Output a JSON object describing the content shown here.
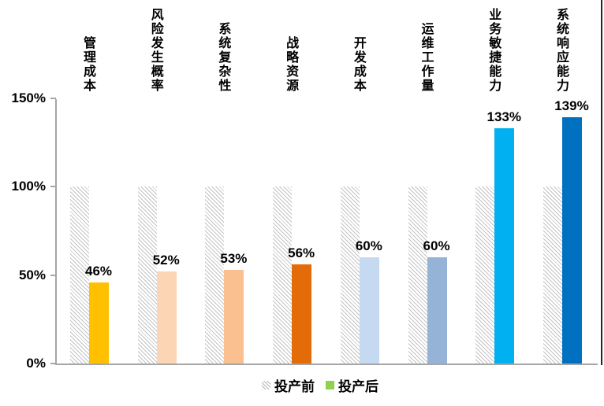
{
  "chart_data": {
    "type": "bar",
    "categories": [
      "管理成本",
      "风险发生概率",
      "系统复杂性",
      "战略资源",
      "开发成本",
      "运维工作量",
      "业务敏捷能力",
      "系统响应能力"
    ],
    "series": [
      {
        "name": "投产前",
        "values": [
          100,
          100,
          100,
          100,
          100,
          100,
          100,
          100
        ],
        "style": "hatched-gray"
      },
      {
        "name": "投产后",
        "values": [
          46,
          52,
          53,
          56,
          60,
          60,
          133,
          139
        ],
        "bar_colors": [
          "#FFC000",
          "#FCD5B4",
          "#FAC090",
          "#E36C09",
          "#C5D9F1",
          "#95B3D7",
          "#00B0F0",
          "#0070C0"
        ]
      }
    ],
    "value_labels": [
      "46%",
      "52%",
      "53%",
      "56%",
      "60%",
      "60%",
      "133%",
      "139%"
    ],
    "yticks": [
      {
        "label": "0%",
        "value": 0
      },
      {
        "label": "50%",
        "value": 50
      },
      {
        "label": "100%",
        "value": 100
      },
      {
        "label": "150%",
        "value": 150
      }
    ],
    "ylim": [
      0,
      150
    ],
    "title": "",
    "xlabel": "",
    "ylabel": "",
    "grid": false,
    "legend_position": "bottom-center",
    "legend": [
      {
        "label": "投产前",
        "swatch": "hatched"
      },
      {
        "label": "投产后",
        "swatch": "#92D050"
      }
    ],
    "colors": {
      "axis": "#A6A6A6",
      "hatch_line": "#C3C3C3",
      "text": "#000000",
      "right_border": "#262626"
    }
  }
}
